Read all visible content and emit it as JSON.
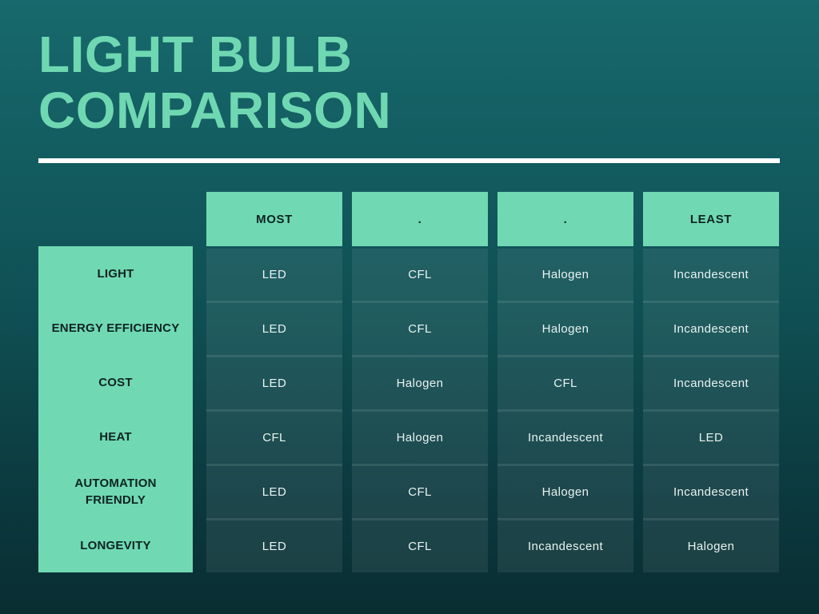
{
  "title": {
    "line1": "LIGHT BULB",
    "line2": "COMPARISON"
  },
  "chart_data": {
    "type": "table",
    "title": "LIGHT BULB COMPARISON",
    "column_headers": [
      "MOST",
      ".",
      ".",
      "LEAST"
    ],
    "row_headers": [
      "LIGHT",
      "ENERGY EFFICIENCY",
      "COST",
      "HEAT",
      "AUTOMATION FRIENDLY",
      "LONGEVITY"
    ],
    "rows": [
      [
        "LED",
        "CFL",
        "Halogen",
        "Incandescent"
      ],
      [
        "LED",
        "CFL",
        "Halogen",
        "Incandescent"
      ],
      [
        "LED",
        "Halogen",
        "CFL",
        "Incandescent"
      ],
      [
        "CFL",
        "Halogen",
        "Incandescent",
        "LED"
      ],
      [
        "LED",
        "CFL",
        "Halogen",
        "Incandescent"
      ],
      [
        "LED",
        "CFL",
        "Incandescent",
        "Halogen"
      ]
    ]
  },
  "colors": {
    "background_top": "#17696c",
    "background_bottom": "#092e32",
    "accent_mint": "#70d9b3",
    "title_text": "#6fd8b2",
    "divider": "#ffffff",
    "cell_text": "#e9f3f1",
    "header_text": "#0d2321"
  }
}
